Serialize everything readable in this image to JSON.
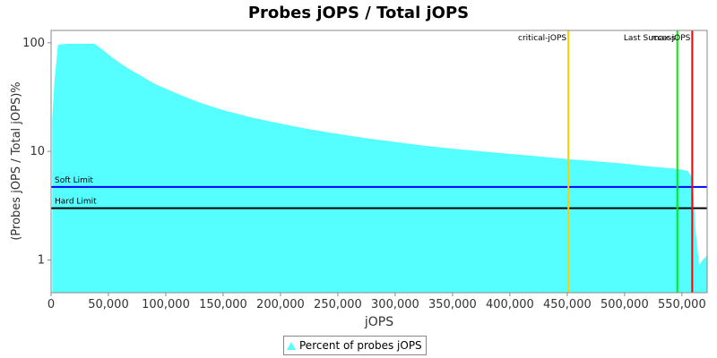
{
  "chart_data": {
    "type": "area",
    "title": "Probes jOPS / Total jOPS",
    "xlabel": "jOPS",
    "ylabel": "(Probes jOPS / Total jOPS)%",
    "yscale": "log",
    "xlim": [
      0,
      572000
    ],
    "ylim": [
      0.5,
      130
    ],
    "x_ticks": [
      0,
      50000,
      100000,
      150000,
      200000,
      250000,
      300000,
      350000,
      400000,
      450000,
      500000,
      550000
    ],
    "x_tick_labels": [
      "0",
      "50,000",
      "100,000",
      "150,000",
      "200,000",
      "250,000",
      "300,000",
      "350,000",
      "400,000",
      "450,000",
      "500,000",
      "550,000"
    ],
    "y_ticks": [
      1,
      10,
      100
    ],
    "y_tick_labels": [
      "1",
      "10",
      "100"
    ],
    "grid": false,
    "legend_placement": "bottom-center",
    "series": [
      {
        "name": "Percent of probes jOPS",
        "color": "#55ffff",
        "x": [
          1000,
          3000,
          6000,
          10000,
          20000,
          30000,
          38000,
          45000,
          55000,
          65000,
          75000,
          90000,
          110000,
          130000,
          150000,
          175000,
          200000,
          225000,
          250000,
          275000,
          300000,
          325000,
          350000,
          375000,
          400000,
          425000,
          450000,
          475000,
          500000,
          520000,
          540000,
          550000,
          555000,
          558000,
          560000,
          562000,
          565000,
          568000,
          572000
        ],
        "y": [
          20,
          45,
          96,
          97,
          98,
          98,
          98,
          86,
          71,
          60,
          52,
          42,
          34,
          28,
          24,
          20.5,
          18,
          16,
          14.5,
          13.2,
          12.2,
          11.3,
          10.6,
          10.0,
          9.5,
          9.0,
          8.5,
          8.1,
          7.7,
          7.3,
          7.0,
          6.8,
          6.6,
          6.0,
          4.0,
          1.8,
          0.9,
          1.0,
          1.1
        ]
      }
    ],
    "horizontal_lines": [
      {
        "name": "Soft Limit",
        "y": 4.7,
        "color": "#0000ff"
      },
      {
        "name": "Hard Limit",
        "y": 3.0,
        "color": "#000000"
      }
    ],
    "vertical_lines": [
      {
        "name": "critical-jOPS",
        "x": 451000,
        "color": "#ffcc00"
      },
      {
        "name": "Last Success",
        "x": 546000,
        "color": "#00ee00"
      },
      {
        "name": "max-jOPS",
        "x": 559000,
        "color": "#ff0000"
      }
    ]
  }
}
